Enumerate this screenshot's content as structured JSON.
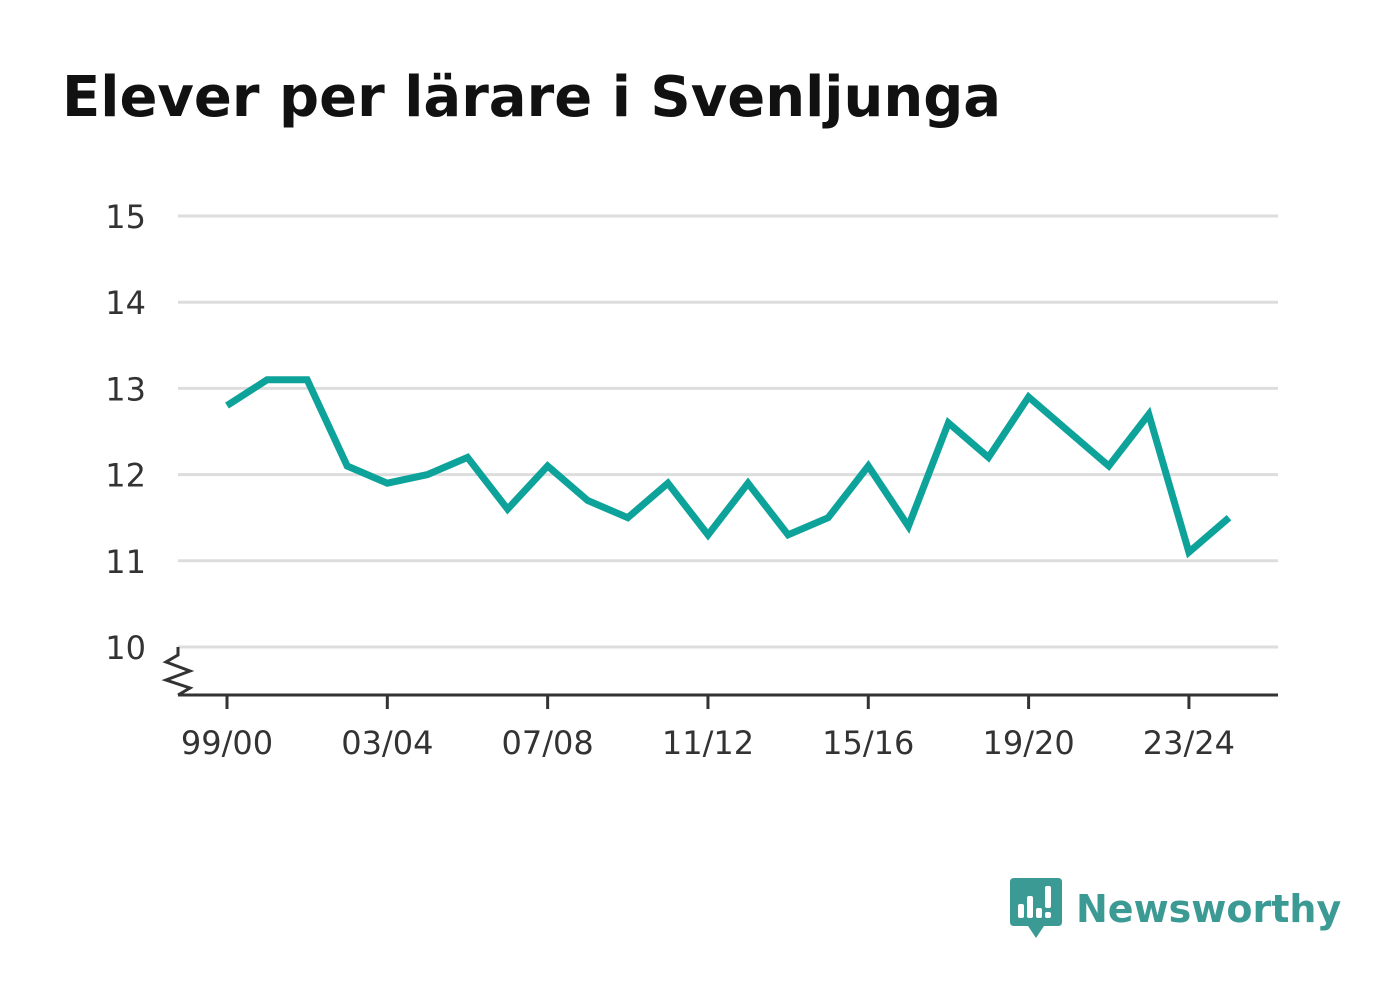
{
  "chart_data": {
    "type": "line",
    "title": "Elever per lärare i Svenljunga",
    "xlabel": "",
    "ylabel": "",
    "x": [
      "99/00",
      "00/01",
      "01/02",
      "02/03",
      "03/04",
      "04/05",
      "05/06",
      "06/07",
      "07/08",
      "08/09",
      "09/10",
      "10/11",
      "11/12",
      "12/13",
      "13/14",
      "14/15",
      "15/16",
      "16/17",
      "17/18",
      "18/19",
      "19/20",
      "20/21",
      "21/22",
      "22/23",
      "23/24",
      "24/25"
    ],
    "x_tick_labels": [
      "99/00",
      "03/04",
      "07/08",
      "11/12",
      "15/16",
      "19/20",
      "23/24"
    ],
    "y_ticks": [
      10,
      11,
      12,
      13,
      14,
      15
    ],
    "ylim": [
      9.45,
      15
    ],
    "y_axis_break": true,
    "grid": true,
    "series": [
      {
        "values": [
          12.8,
          13.1,
          13.1,
          12.1,
          11.9,
          12.0,
          12.2,
          11.6,
          12.1,
          11.7,
          11.5,
          11.9,
          11.3,
          11.9,
          11.3,
          11.5,
          12.1,
          11.4,
          12.6,
          12.2,
          12.9,
          12.5,
          12.1,
          12.7,
          11.1,
          11.5
        ],
        "color": "#0ea39a"
      }
    ]
  },
  "colors": {
    "line": "#0ea39a",
    "grid": "#dddddd",
    "axis": "#333333",
    "brand": "#3b9a93"
  },
  "brand": {
    "name": "Newsworthy",
    "icon": "newsworthy-logo-icon"
  }
}
